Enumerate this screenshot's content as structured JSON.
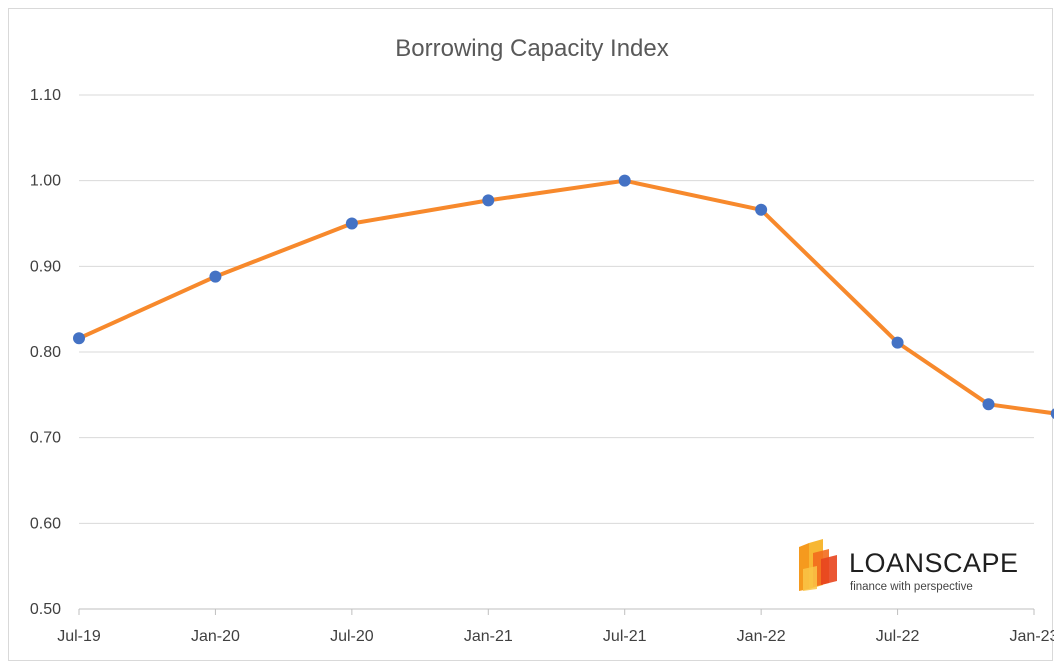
{
  "chart_data": {
    "type": "line",
    "title": "Borrowing Capacity Index",
    "xlabel": "",
    "ylabel": "",
    "x_ticks": [
      "Jul-19",
      "Jan-20",
      "Jul-20",
      "Jan-21",
      "Jul-21",
      "Jan-22",
      "Jul-22",
      "Jan-23"
    ],
    "x_tick_months": [
      "2019-07",
      "2020-01",
      "2020-07",
      "2021-01",
      "2021-07",
      "2022-01",
      "2022-07",
      "2023-01"
    ],
    "ylim": [
      0.5,
      1.1
    ],
    "y_ticks": [
      "0.50",
      "0.60",
      "0.70",
      "0.80",
      "0.90",
      "1.00",
      "1.10"
    ],
    "y_tick_values": [
      0.5,
      0.6,
      0.7,
      0.8,
      0.9,
      1.0,
      1.1
    ],
    "grid": "horizontal",
    "legend": "none",
    "series": [
      {
        "color": "#f7892c",
        "marker_color": "#4472c4",
        "x": [
          "2019-07",
          "2020-01",
          "2020-07",
          "2021-01",
          "2021-07",
          "2022-01",
          "2022-07",
          "2022-11",
          "2023-02"
        ],
        "values": [
          0.816,
          0.888,
          0.95,
          0.977,
          1.0,
          0.966,
          0.811,
          0.739,
          0.728
        ]
      }
    ]
  },
  "logo": {
    "brand": "LOANSCAPE",
    "tagline": "finance with perspective"
  }
}
